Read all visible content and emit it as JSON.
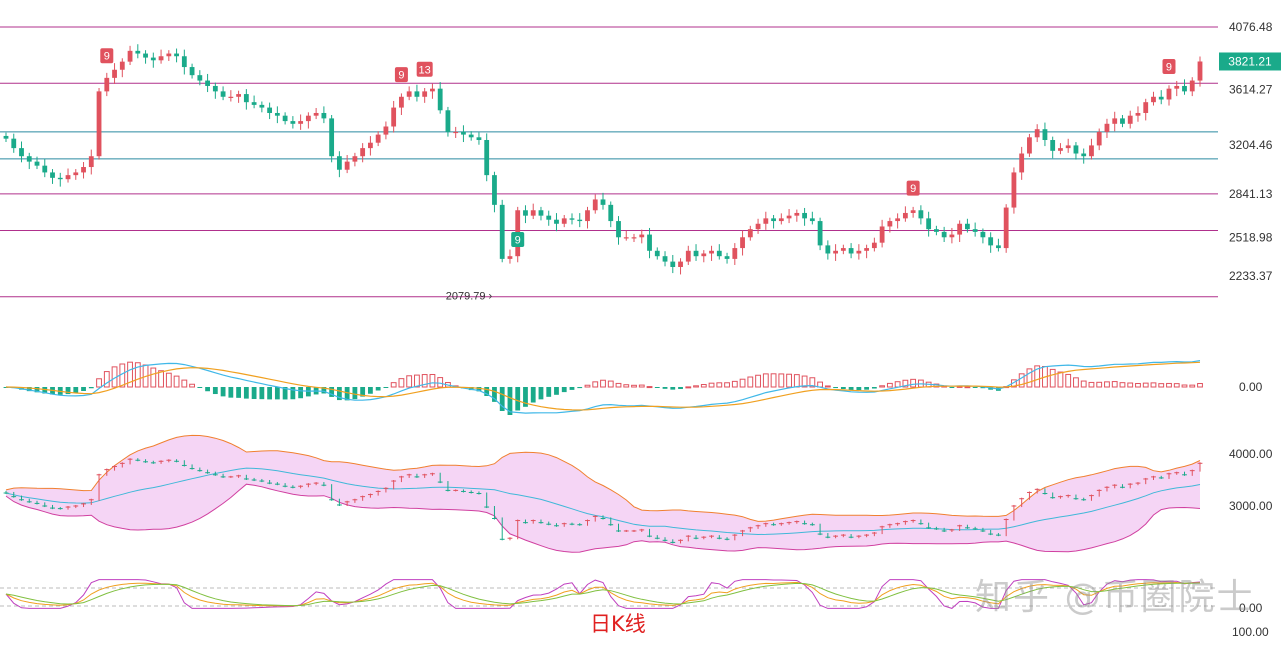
{
  "caption": "日K线",
  "watermark": "知乎 @币圈院士",
  "colors": {
    "up": "#e0525e",
    "down": "#1aaa8a",
    "hline_purple": "#b0308c",
    "hline_teal": "#2a8aa0",
    "macd_dif": "#40b8e8",
    "macd_dea": "#f0a020",
    "boll_band": "#f5d5f5",
    "boll_mid": "#40b8d8",
    "boll_upper": "#f08030",
    "boll_lower": "#d040a0",
    "kdj_k": "#f0a020",
    "kdj_d": "#80c040",
    "kdj_j": "#c040c0"
  },
  "chart_data": {
    "type": "candlestick",
    "title": "",
    "price_axis": {
      "ticks": [
        "4076.48",
        "3614.27",
        "3204.46",
        "2841.13",
        "2518.98",
        "2233.37"
      ],
      "current": "3821.21"
    },
    "low_label": "2079.79",
    "horizontal_levels": [
      4076.48,
      3660,
      3300,
      3100,
      2841.13,
      2570,
      2079.79
    ],
    "markers": [
      {
        "bar": 13,
        "text": "9",
        "kind": "up"
      },
      {
        "bar": 51,
        "text": "9",
        "kind": "up"
      },
      {
        "bar": 54,
        "text": "13",
        "kind": "up"
      },
      {
        "bar": 66,
        "text": "9",
        "kind": "down"
      },
      {
        "bar": 117,
        "text": "9",
        "kind": "up"
      },
      {
        "bar": 150,
        "text": "9",
        "kind": "up"
      }
    ],
    "close": [
      3250,
      3180,
      3120,
      3080,
      3050,
      3000,
      2960,
      2950,
      2980,
      3000,
      3040,
      3120,
      3600,
      3700,
      3760,
      3820,
      3900,
      3880,
      3850,
      3830,
      3860,
      3880,
      3860,
      3780,
      3720,
      3680,
      3640,
      3600,
      3560,
      3560,
      3580,
      3520,
      3500,
      3480,
      3440,
      3420,
      3380,
      3360,
      3380,
      3420,
      3440,
      3400,
      3120,
      3020,
      3080,
      3120,
      3180,
      3220,
      3280,
      3340,
      3480,
      3560,
      3600,
      3560,
      3600,
      3620,
      3460,
      3300,
      3300,
      3280,
      3260,
      3240,
      2980,
      2760,
      2360,
      2380,
      2720,
      2680,
      2720,
      2680,
      2650,
      2620,
      2660,
      2650,
      2640,
      2720,
      2800,
      2760,
      2640,
      2520,
      2520,
      2520,
      2540,
      2420,
      2380,
      2340,
      2300,
      2340,
      2420,
      2380,
      2400,
      2420,
      2380,
      2360,
      2440,
      2520,
      2580,
      2620,
      2660,
      2640,
      2660,
      2680,
      2700,
      2660,
      2640,
      2460,
      2400,
      2420,
      2440,
      2400,
      2420,
      2440,
      2480,
      2600,
      2640,
      2660,
      2700,
      2720,
      2660,
      2580,
      2560,
      2520,
      2540,
      2620,
      2580,
      2560,
      2520,
      2460,
      2440,
      2740,
      3000,
      3140,
      3260,
      3320,
      3240,
      3160,
      3180,
      3200,
      3140,
      3120,
      3200,
      3300,
      3360,
      3400,
      3360,
      3420,
      3440,
      3520,
      3560,
      3540,
      3620,
      3640,
      3600,
      3680,
      3821.21
    ],
    "macd_axis": [
      "0.00"
    ],
    "boll_axis": [
      "4000.00",
      "3000.00"
    ],
    "kdj_axis": [
      "0.00",
      "100.00"
    ]
  }
}
